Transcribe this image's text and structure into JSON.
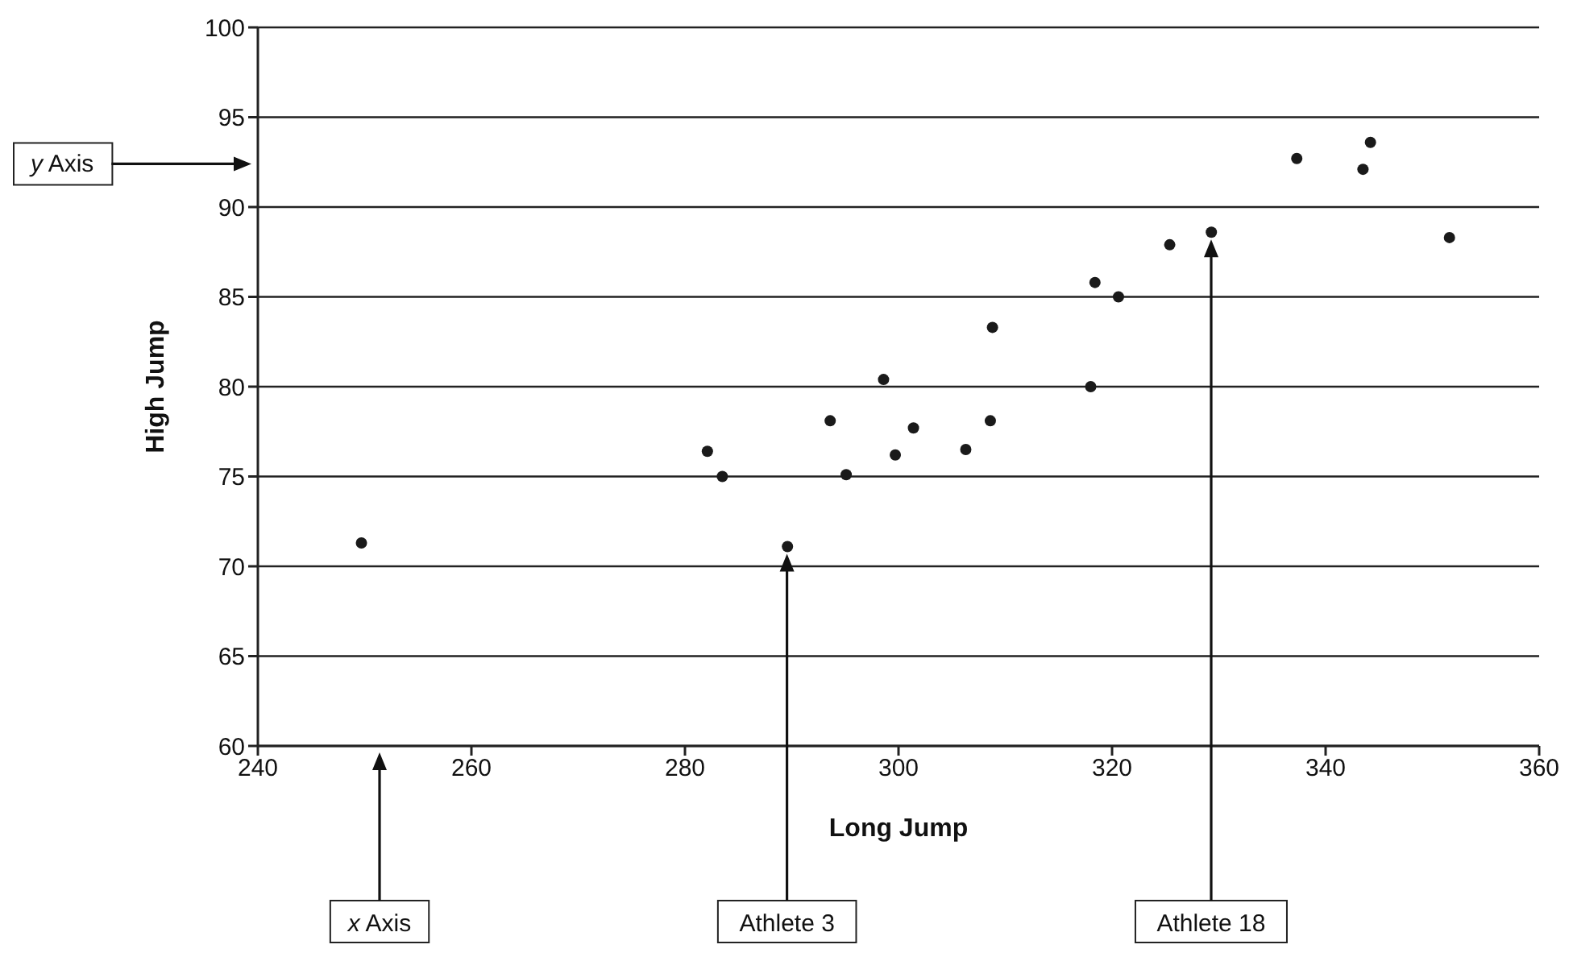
{
  "chart_data": {
    "type": "scatter",
    "xlabel": "Long Jump",
    "ylabel": "High Jump",
    "x": [
      249.7,
      282.1,
      283.5,
      289.6,
      293.6,
      295.1,
      298.6,
      299.7,
      301.4,
      306.3,
      308.8,
      308.6,
      318.0,
      318.4,
      320.6,
      325.4,
      329.3,
      337.3,
      343.5,
      344.2,
      351.6
    ],
    "values": [
      71.3,
      76.4,
      75.0,
      71.1,
      78.1,
      75.1,
      80.4,
      76.2,
      77.7,
      76.5,
      83.3,
      78.1,
      80.0,
      85.8,
      85.0,
      87.9,
      88.6,
      92.7,
      92.1,
      93.6,
      88.3
    ],
    "color": "#1a1a1a",
    "marker": "circle",
    "xlim": [
      240,
      360
    ],
    "xticks": [
      240,
      260,
      280,
      300,
      320,
      340,
      360
    ],
    "ylim": [
      60,
      100
    ],
    "yticks": [
      60,
      65,
      70,
      75,
      80,
      85,
      90,
      95,
      100
    ],
    "grid": "y",
    "annotations": [
      "y Axis",
      "x Axis",
      "Athlete 3",
      "Athlete 18"
    ]
  }
}
